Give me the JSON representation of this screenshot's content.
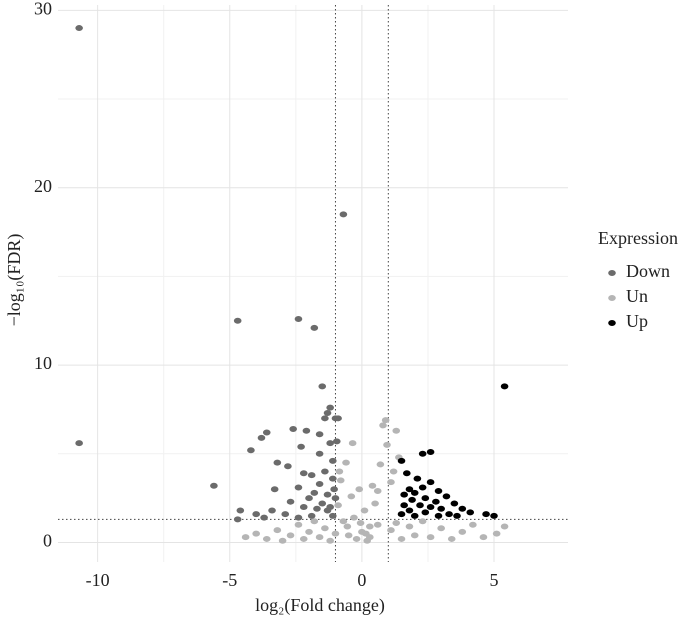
{
  "chart_data": {
    "type": "scatter",
    "x_label": "log₂(Fold change)",
    "y_label": "−log₁₀(FDR)",
    "legend_title": "Expression",
    "legend_position": "right",
    "grid": true,
    "xlim": [
      -11.5,
      7.8
    ],
    "ylim": [
      -1.1,
      30.3
    ],
    "xticks": [
      -10,
      -5,
      0,
      5
    ],
    "yticks": [
      0,
      10,
      20,
      30
    ],
    "thresholds": {
      "x": [
        -1,
        1
      ],
      "y": 1.3
    },
    "series": [
      {
        "name": "Un",
        "color": "#b5b5b5",
        "x": [
          -4.4,
          -4.0,
          -3.6,
          -3.2,
          -3.0,
          -2.7,
          -2.4,
          -2.2,
          -2.0,
          -1.8,
          -1.6,
          -1.4,
          -1.2,
          -1.0,
          -0.9,
          -0.8,
          -0.7,
          -0.6,
          -0.5,
          -0.4,
          -0.35,
          -0.3,
          -0.2,
          -0.1,
          0.0,
          0.1,
          0.2,
          0.3,
          0.4,
          0.5,
          0.6,
          0.7,
          0.8,
          0.9,
          0.95,
          0.6,
          0.3,
          1.1,
          1.3,
          1.5,
          1.8,
          2.0,
          2.3,
          2.6,
          3.0,
          3.4,
          3.8,
          4.2,
          4.6,
          5.1,
          5.4,
          1.2,
          1.4,
          1.3,
          1.1,
          -0.85,
          -0.55,
          0.15,
          -0.05
        ],
        "values": [
          0.3,
          0.5,
          0.2,
          0.7,
          0.1,
          0.4,
          1.0,
          0.2,
          0.6,
          1.2,
          0.3,
          0.8,
          0.1,
          0.5,
          2.1,
          3.5,
          1.2,
          4.5,
          0.4,
          2.6,
          5.6,
          1.4,
          0.2,
          3.0,
          0.6,
          1.8,
          0.1,
          0.9,
          3.2,
          2.2,
          1.0,
          4.4,
          6.6,
          6.9,
          5.5,
          2.9,
          0.3,
          0.7,
          1.1,
          0.2,
          0.9,
          0.4,
          1.2,
          0.3,
          0.8,
          0.2,
          0.6,
          1.0,
          0.3,
          0.5,
          0.9,
          4.0,
          4.8,
          6.3,
          3.4,
          4.0,
          0.9,
          0.5,
          1.1
        ]
      },
      {
        "name": "Down",
        "color": "#6b6b6b",
        "x": [
          -10.7,
          -10.7,
          -5.6,
          -4.7,
          -2.4,
          -1.8,
          -0.7,
          -1.5,
          -1.2,
          -1.3,
          -1.0,
          -0.9,
          -1.4,
          -3.6,
          -3.8,
          -4.2,
          -2.6,
          -2.1,
          -1.6,
          -3.2,
          -2.8,
          -2.2,
          -1.9,
          -1.4,
          -1.1,
          -1.6,
          -2.4,
          -3.3,
          -1.8,
          -1.3,
          -1.0,
          -2.0,
          -2.7,
          -1.5,
          -1.2,
          -2.2,
          -1.7,
          -3.4,
          -4.0,
          -4.6,
          -4.7,
          -2.9,
          -1.1,
          -1.9,
          -3.7,
          -2.4,
          -1.3,
          -1.05,
          -1.1,
          -1.6,
          -2.3,
          -1.2,
          -0.95
        ],
        "values": [
          29,
          5.6,
          3.2,
          12.5,
          12.6,
          12.1,
          18.5,
          8.8,
          7.6,
          7.3,
          7.0,
          7.0,
          7.0,
          6.2,
          5.9,
          5.2,
          6.4,
          6.3,
          6.1,
          4.5,
          4.3,
          3.9,
          3.8,
          4.0,
          3.6,
          3.3,
          3.1,
          3.0,
          2.8,
          2.7,
          2.5,
          2.5,
          2.3,
          2.2,
          2.0,
          2.0,
          1.9,
          1.8,
          1.6,
          1.8,
          1.3,
          1.6,
          1.5,
          1.5,
          1.4,
          1.4,
          1.8,
          3.0,
          4.6,
          5.0,
          5.4,
          5.6,
          5.7
        ]
      },
      {
        "name": "Up",
        "color": "#000000",
        "x": [
          5.4,
          2.6,
          2.3,
          1.5,
          1.7,
          2.1,
          2.6,
          2.3,
          1.8,
          2.0,
          2.9,
          3.2,
          1.6,
          2.4,
          2.8,
          1.9,
          3.5,
          2.2,
          1.6,
          2.6,
          3.0,
          1.8,
          2.4,
          3.3,
          3.8,
          4.1,
          4.7,
          5.0,
          2.0,
          2.9,
          1.5,
          3.6
        ],
        "values": [
          8.8,
          5.1,
          5.0,
          4.6,
          3.9,
          3.6,
          3.4,
          3.1,
          3.0,
          2.8,
          2.9,
          2.6,
          2.7,
          2.5,
          2.3,
          2.4,
          2.2,
          2.1,
          2.1,
          2.0,
          1.9,
          1.8,
          1.7,
          1.6,
          1.9,
          1.7,
          1.6,
          1.5,
          1.5,
          1.5,
          1.6,
          1.5
        ]
      }
    ]
  }
}
